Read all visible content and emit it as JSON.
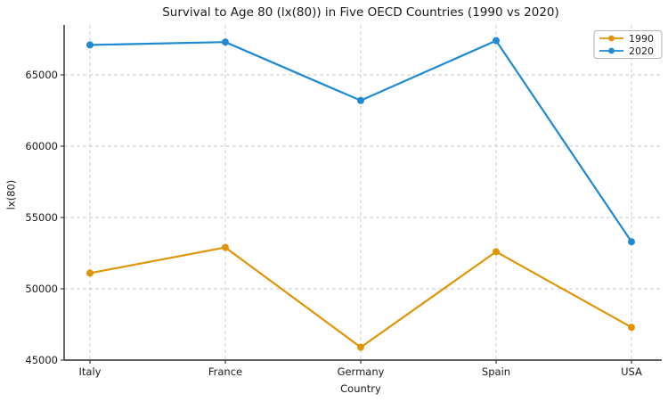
{
  "chart_data": {
    "type": "line",
    "title": "Survival to Age 80 (lx(80)) in Five OECD Countries (1990 vs 2020)",
    "xlabel": "Country",
    "ylabel": "lx(80)",
    "categories": [
      "Italy",
      "France",
      "Germany",
      "Spain",
      "USA"
    ],
    "series": [
      {
        "name": "1990",
        "color": "#E09508",
        "values": [
          51100,
          52900,
          45900,
          52600,
          47300
        ]
      },
      {
        "name": "2020",
        "color": "#1F8AD2",
        "values": [
          67100,
          67300,
          63200,
          67400,
          53300
        ]
      }
    ],
    "ylim": [
      45000,
      68500
    ],
    "yticks": [
      45000,
      50000,
      55000,
      60000,
      65000
    ],
    "grid": true,
    "grid_style": "dashed",
    "legend_position": "upper right",
    "colors": {
      "grid": "#c9c9c9",
      "spine": "#2a2a2a",
      "text": "#1a1a1a",
      "background": "#ffffff"
    }
  }
}
